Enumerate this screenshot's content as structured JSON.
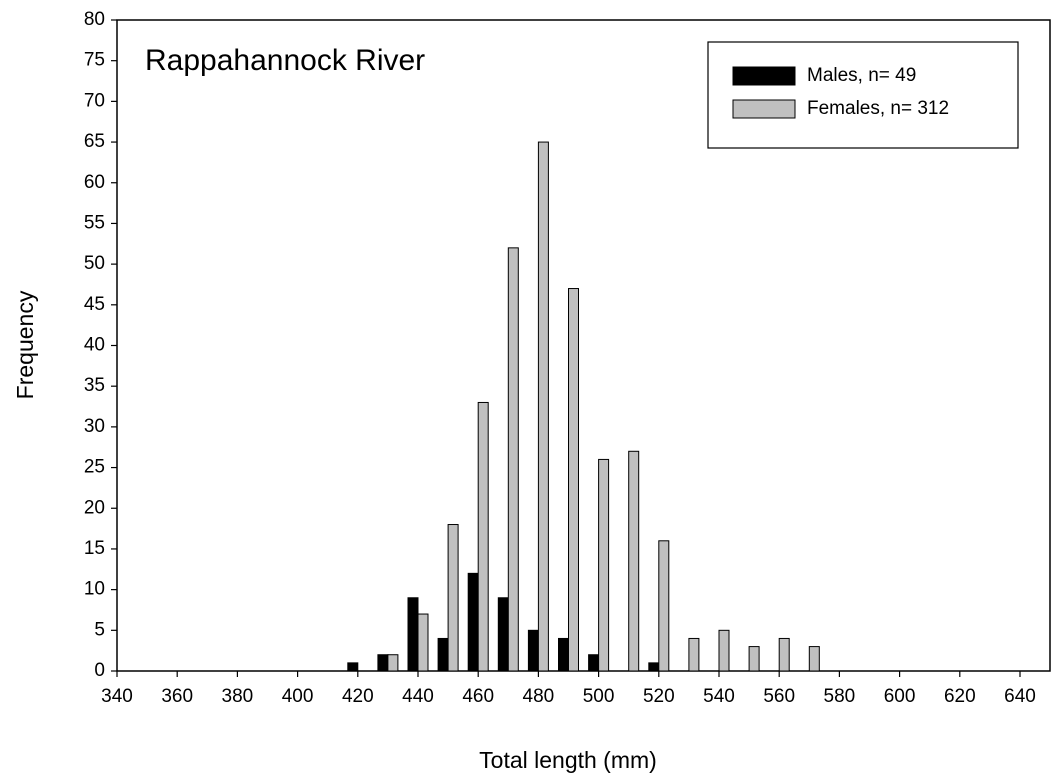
{
  "chart_data": {
    "type": "bar",
    "annotation": "Rappahannock River",
    "x_label": "Total length (mm)",
    "y_label": "Frequency",
    "x": [
      420,
      430,
      440,
      450,
      460,
      470,
      480,
      490,
      500,
      510,
      520,
      530,
      540,
      550,
      560,
      570
    ],
    "series": [
      {
        "name": "Males, n= 49",
        "color": "#000000",
        "values": [
          1,
          2,
          9,
          4,
          12,
          9,
          5,
          4,
          2,
          0,
          1,
          0,
          0,
          0,
          0,
          0
        ]
      },
      {
        "name": "Females, n= 312",
        "color": "#c0c0c0",
        "values": [
          0,
          2,
          7,
          18,
          33,
          52,
          65,
          47,
          26,
          27,
          16,
          4,
          5,
          3,
          4,
          3
        ]
      }
    ],
    "xlim": [
      340,
      640
    ],
    "xticks": [
      340,
      360,
      380,
      400,
      420,
      440,
      460,
      480,
      500,
      520,
      540,
      560,
      580,
      600,
      620,
      640
    ],
    "ylim": [
      0,
      80
    ],
    "yticks": [
      0,
      5,
      10,
      15,
      20,
      25,
      30,
      35,
      40,
      45,
      50,
      55,
      60,
      65,
      70,
      75,
      80
    ],
    "grid": false,
    "legend": "upper right"
  }
}
